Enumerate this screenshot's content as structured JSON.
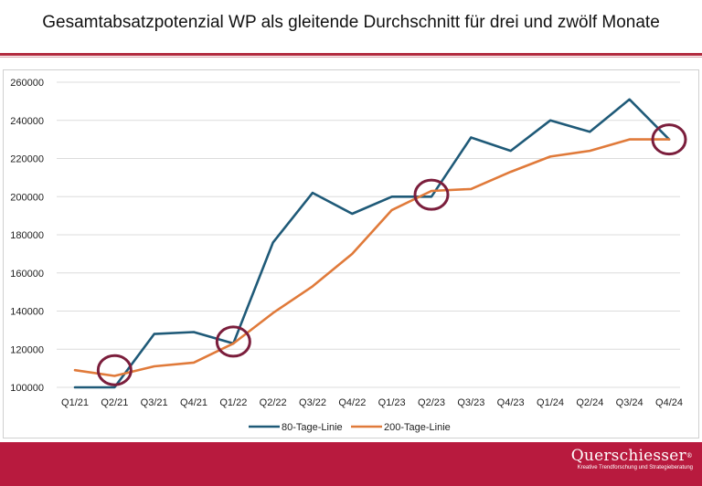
{
  "header": {
    "title": "Gesamtabsatzpotenzial WP als gleitende Durchschnitt für drei und zwölf Monate"
  },
  "brand": {
    "name": "Querschiesser",
    "mark": "®",
    "tagline": "Kreative Trendforschung und Strategieberatung"
  },
  "colors": {
    "series_80": "#1f5a78",
    "series_200": "#e07a3a",
    "circle": "#7b1e3c",
    "footer": "#b81a3e"
  },
  "chart_data": {
    "type": "line",
    "title": "Gesamtabsatzpotenzial WP als gleitende Durchschnitt für drei und zwölf Monate",
    "xlabel": "",
    "ylabel": "",
    "ylim": [
      100000,
      260000
    ],
    "yticks": [
      100000,
      120000,
      140000,
      160000,
      180000,
      200000,
      220000,
      240000,
      260000
    ],
    "ytick_labels": [
      "100000",
      "120000",
      "140000",
      "160000",
      "180000",
      "200000",
      "220000",
      "240000",
      "260000"
    ],
    "grid": "horizontal",
    "legend_position": "bottom-center",
    "categories": [
      "Q1/21",
      "Q2/21",
      "Q3/21",
      "Q4/21",
      "Q1/22",
      "Q2/22",
      "Q3/22",
      "Q4/22",
      "Q1/23",
      "Q2/23",
      "Q3/23",
      "Q4/23",
      "Q1/24",
      "Q2/24",
      "Q3/24",
      "Q4/24"
    ],
    "series": [
      {
        "name": "80-Tage-Linie",
        "color": "#1f5a78",
        "values": [
          100000,
          100000,
          128000,
          129000,
          123000,
          176000,
          202000,
          191000,
          200000,
          200000,
          231000,
          224000,
          240000,
          234000,
          251000,
          230000
        ]
      },
      {
        "name": "200-Tage-Linie",
        "color": "#e07a3a",
        "values": [
          109000,
          106000,
          111000,
          113000,
          123000,
          139000,
          153000,
          170000,
          193000,
          203000,
          204000,
          213000,
          221000,
          224000,
          230000,
          230000
        ]
      }
    ],
    "annotations": [
      {
        "type": "circle",
        "category": "Q2/21",
        "value": 109000,
        "label": ""
      },
      {
        "type": "circle",
        "category": "Q1/22",
        "value": 124000,
        "label": ""
      },
      {
        "type": "circle",
        "category": "Q2/23",
        "value": 201000,
        "label": ""
      },
      {
        "type": "circle",
        "category": "Q4/24",
        "value": 230000,
        "label": ""
      }
    ]
  }
}
